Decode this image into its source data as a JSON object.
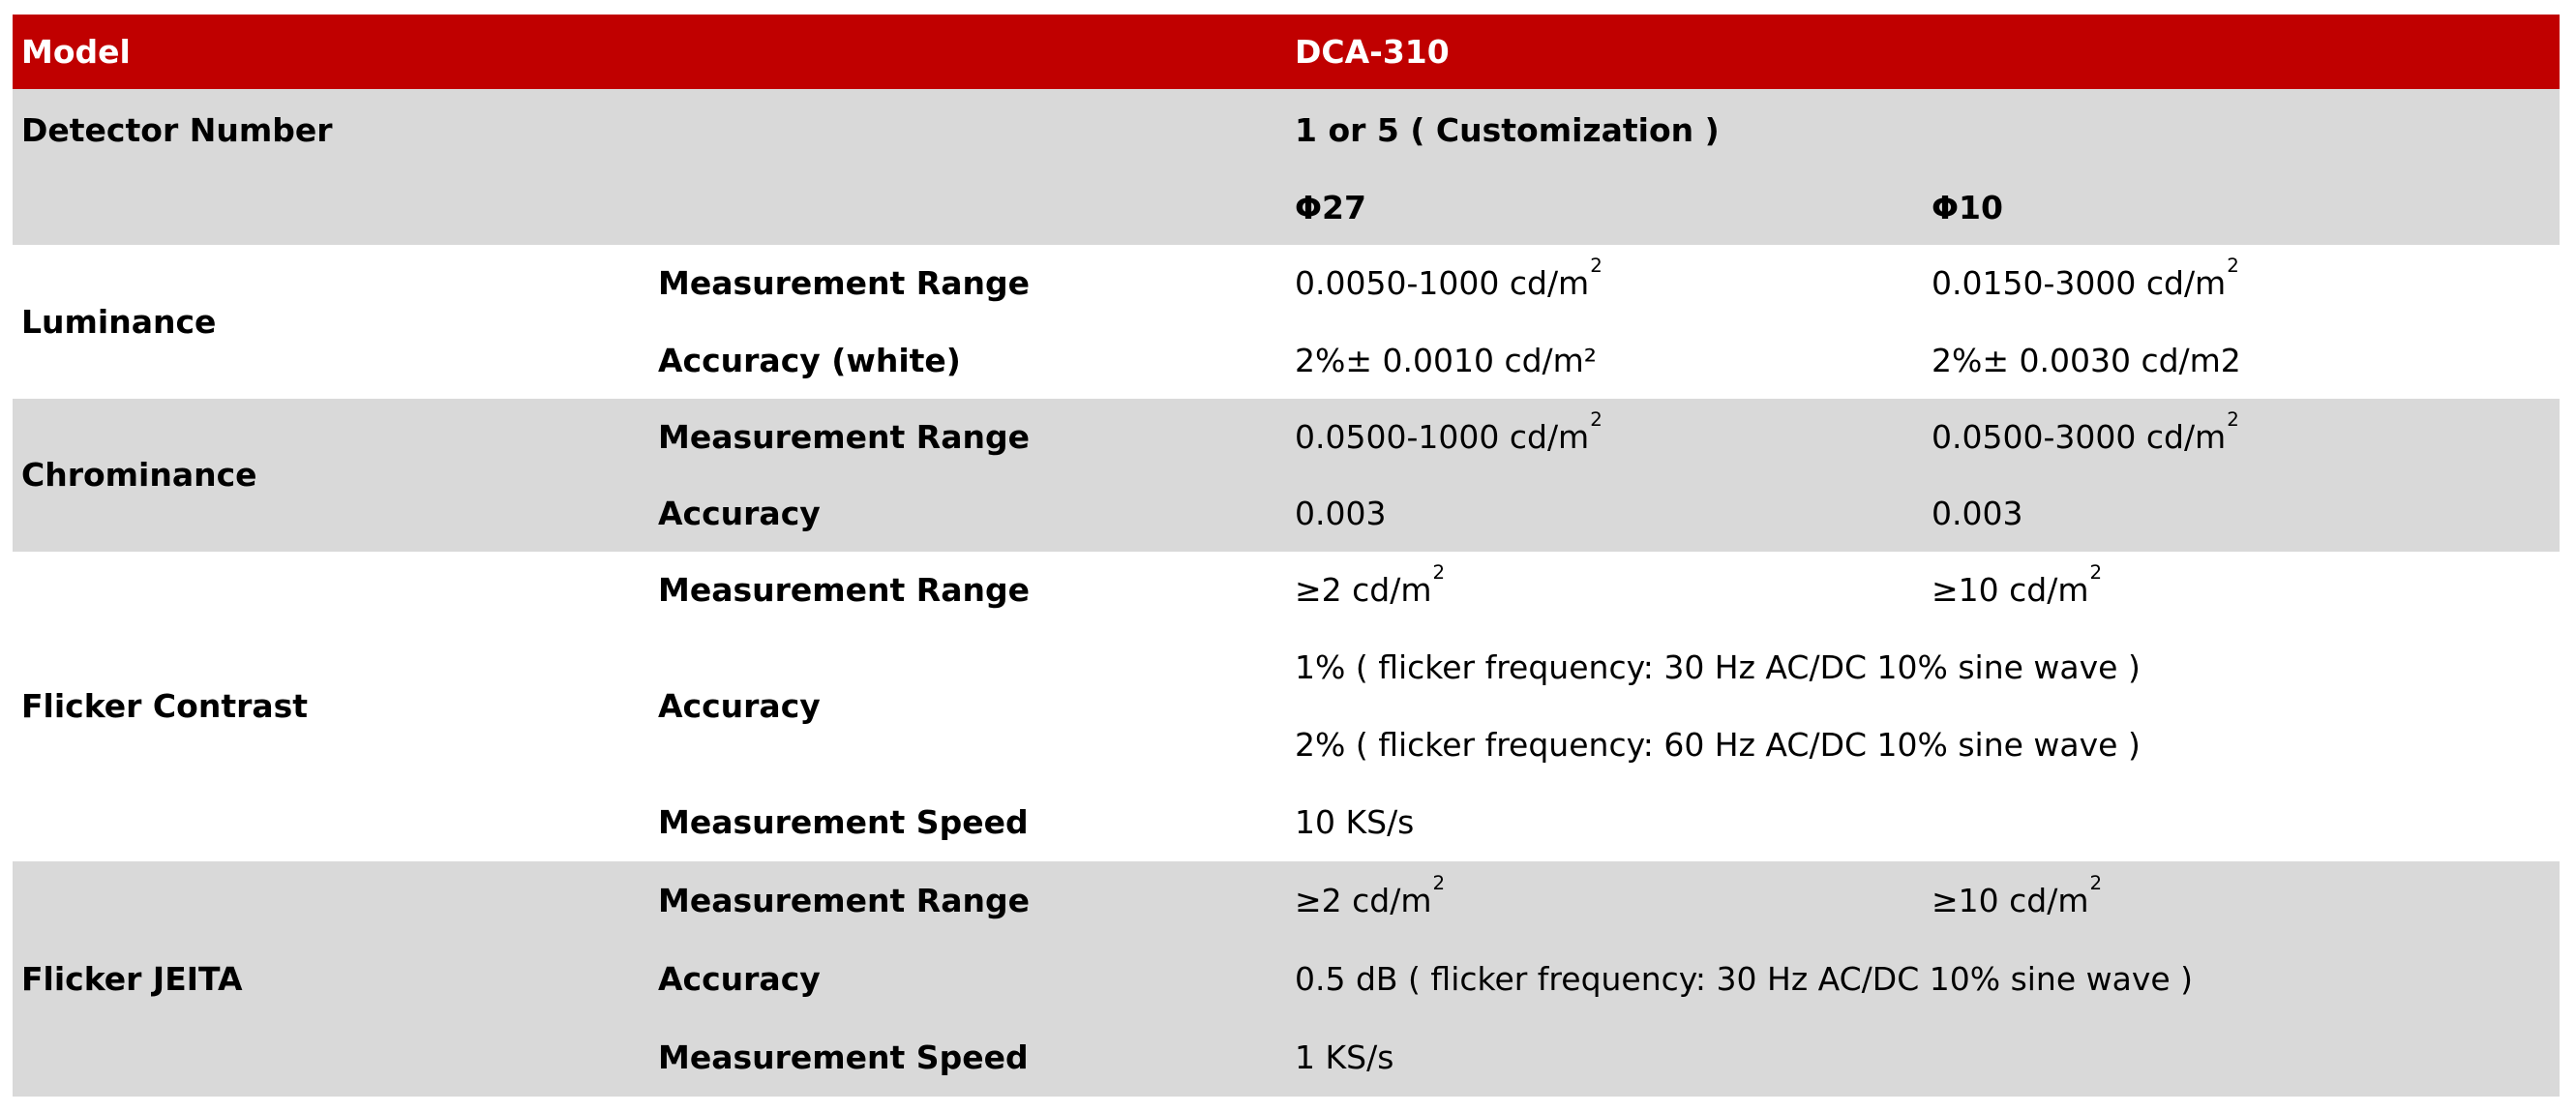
{
  "colors": {
    "header_bg": "#c00000",
    "header_text": "#ffffff",
    "section_alt_bg": "#d9d9d9",
    "section_bg": "#ffffff",
    "body_text": "#000000"
  },
  "table": {
    "model_label": "Model",
    "model_value": "DCA-310",
    "detector_label": "Detector Number",
    "detector_value": "1 or 5 ( Customization )",
    "column_phi27": "Φ27",
    "column_phi10": "Φ10",
    "row_labels": {
      "measurement_range": "Measurement Range",
      "accuracy": "Accuracy",
      "accuracy_white": "Accuracy (white)",
      "measurement_speed": "Measurement Speed"
    },
    "luminance": {
      "title": "Luminance",
      "range_phi27": {
        "base": "0.0050-1000 cd/m",
        "sup": "2"
      },
      "range_phi10": {
        "base": "0.0150-3000 cd/m",
        "sup": "2"
      },
      "accuracy_phi27": "2%± 0.0010 cd/m²",
      "accuracy_phi10": "2%± 0.0030 cd/m2"
    },
    "chrominance": {
      "title": "Chrominance",
      "range_phi27": {
        "base": "0.0500-1000 cd/m",
        "sup": "2"
      },
      "range_phi10": {
        "base": "0.0500-3000 cd/m",
        "sup": "2"
      },
      "accuracy_phi27": "0.003",
      "accuracy_phi10": "0.003"
    },
    "flicker_contrast": {
      "title": "Flicker Contrast",
      "range_phi27": {
        "base": "≥2 cd/m",
        "sup": "2"
      },
      "range_phi10": {
        "base": "≥10 cd/m",
        "sup": "2"
      },
      "accuracy_line1": "1% ( flicker frequency: 30 Hz AC/DC 10% sine wave )",
      "accuracy_line2": "2% ( flicker frequency: 60 Hz AC/DC 10% sine wave )",
      "speed": "10 KS/s"
    },
    "flicker_jeita": {
      "title": "Flicker JEITA",
      "range_phi27": {
        "base": "≥2 cd/m",
        "sup": "2"
      },
      "range_phi10": {
        "base": "≥10 cd/m",
        "sup": "2"
      },
      "accuracy": "0.5 dB  ( flicker frequency: 30 Hz AC/DC 10% sine wave )",
      "speed": "1 KS/s"
    }
  }
}
